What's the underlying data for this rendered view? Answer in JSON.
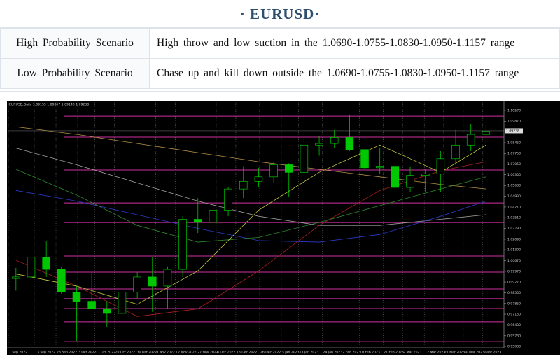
{
  "header": {
    "title": "· EURUSD·"
  },
  "table": {
    "rows": [
      [
        "High Probability Scenario",
        "High throw and low suction in the 1.0690-1.0755-1.0830-1.0950-1.1157 range"
      ],
      [
        "Low Probability Scenario",
        "Chase up and kill down outside the 1.0690-1.0755-1.0830-1.0950-1.1157 range"
      ]
    ]
  },
  "chart_data": {
    "type": "candlestick",
    "title": "EURUSD,Daily 1.09155 1.09367 1.09140 1.09238",
    "current_price": {
      "value": 1.09238,
      "label": "1.09238"
    },
    "xlim": [
      0,
      32.5
    ],
    "ylim": [
      0.9503,
      1.1108
    ],
    "open": [
      0.995,
      0.996,
      1.009,
      1.001,
      0.986,
      0.98,
      0.975,
      0.972,
      0.986,
      0.996,
      0.99,
      1.001,
      1.034,
      1.032,
      1.04,
      1.054,
      1.059,
      1.062,
      1.07,
      1.065,
      1.083,
      1.084,
      1.088,
      1.08,
      1.068,
      1.069,
      1.055,
      1.063,
      1.064,
      1.074,
      1.083,
      1.09
    ],
    "high": [
      1.002,
      1.014,
      1.02,
      1.003,
      0.99,
      0.999,
      0.98,
      0.988,
      0.999,
      1.009,
      1.003,
      1.036,
      1.048,
      1.044,
      1.055,
      1.069,
      1.068,
      1.072,
      1.071,
      1.083,
      1.089,
      1.093,
      1.103,
      1.08,
      1.081,
      1.072,
      1.069,
      1.067,
      1.079,
      1.093,
      1.097,
      1.096
    ],
    "low": [
      0.987,
      0.993,
      0.996,
      0.985,
      0.954,
      0.975,
      0.963,
      0.966,
      0.982,
      0.973,
      0.975,
      0.996,
      1.025,
      1.022,
      1.036,
      1.048,
      1.055,
      1.058,
      1.049,
      1.055,
      1.076,
      1.081,
      1.079,
      1.067,
      1.064,
      1.053,
      1.052,
      1.052,
      1.052,
      1.07,
      1.079,
      1.083
    ],
    "close": [
      0.996,
      1.009,
      1.001,
      0.986,
      0.98,
      0.975,
      0.972,
      0.986,
      0.996,
      0.99,
      1.001,
      1.034,
      1.032,
      1.04,
      1.054,
      1.059,
      1.062,
      1.07,
      1.065,
      1.083,
      1.084,
      1.088,
      1.08,
      1.068,
      1.069,
      1.055,
      1.063,
      1.064,
      1.074,
      1.083,
      1.09,
      1.092
    ],
    "candle_x": [
      0.5,
      1.5,
      2.5,
      3.5,
      4.5,
      5.5,
      6.5,
      7.5,
      8.5,
      9.5,
      10.5,
      11.5,
      12.5,
      13.5,
      14.5,
      15.5,
      16.5,
      17.5,
      18.5,
      19.5,
      20.5,
      21.5,
      22.5,
      23.5,
      24.5,
      25.5,
      26.5,
      27.5,
      28.5,
      29.5,
      30.5,
      31.5
    ],
    "up_color": "#00c800",
    "down_color": "#00c800",
    "levels": [
      1.102,
      1.0882,
      1.0665,
      1.0448,
      1.0319,
      1.0098,
      0.9992,
      0.9881,
      0.9817,
      0.9752,
      0.9665,
      0.9536
    ],
    "level_color": "#d0309f",
    "ma_x": [
      0.5,
      4.5,
      8.5,
      12.5,
      16.5,
      20.5,
      24.5,
      28.5,
      31.5
    ],
    "series": [
      {
        "color": "#b8924a",
        "values": [
          1.095,
          1.09,
          1.084,
          1.078,
          1.072,
          1.067,
          1.062,
          1.057,
          1.054
        ]
      },
      {
        "color": "#a0a0a0",
        "values": [
          1.081,
          1.07,
          1.058,
          1.046,
          1.036,
          1.03,
          1.03,
          1.034,
          1.037
        ]
      },
      {
        "color": "#2a3cc8",
        "values": [
          1.053,
          1.046,
          1.037,
          1.028,
          1.02,
          1.019,
          1.024,
          1.036,
          1.046
        ]
      },
      {
        "color": "#2e8a2e",
        "values": [
          1.067,
          1.05,
          1.03,
          1.019,
          1.022,
          1.032,
          1.043,
          1.054,
          1.062
        ]
      },
      {
        "color": "#b02020",
        "values": [
          1.007,
          0.99,
          0.97,
          0.975,
          1.0,
          1.03,
          1.053,
          1.066,
          1.072
        ]
      },
      {
        "color": "#c8c840",
        "values": [
          0.998,
          0.99,
          0.978,
          1.0,
          1.04,
          1.065,
          1.083,
          1.065,
          1.083
        ]
      }
    ],
    "yticks": [
      {
        "value": 1.1057,
        "label": "1.10570"
      },
      {
        "value": 1.0987,
        "label": "1.09870"
      },
      {
        "value": 1.0845,
        "label": "1.08450"
      },
      {
        "value": 1.0775,
        "label": "1.07750"
      },
      {
        "value": 1.0705,
        "label": "1.07050"
      },
      {
        "value": 1.0635,
        "label": "1.06350"
      },
      {
        "value": 1.0563,
        "label": "1.05630"
      },
      {
        "value": 1.0493,
        "label": "1.04930"
      },
      {
        "value": 1.0421,
        "label": "1.04210"
      },
      {
        "value": 1.0351,
        "label": "1.03510"
      },
      {
        "value": 1.0279,
        "label": "1.02790"
      },
      {
        "value": 1.0209,
        "label": "1.02090"
      },
      {
        "value": 1.0139,
        "label": "1.01390"
      },
      {
        "value": 1.0067,
        "label": "1.00670"
      },
      {
        "value": 0.9997,
        "label": "0.99970"
      },
      {
        "value": 0.9927,
        "label": "0.99270"
      },
      {
        "value": 0.9855,
        "label": "0.98550"
      },
      {
        "value": 0.9785,
        "label": "0.97850"
      },
      {
        "value": 0.9715,
        "label": "0.97150"
      },
      {
        "value": 0.9643,
        "label": "0.96430"
      },
      {
        "value": 0.9573,
        "label": "0.95730"
      },
      {
        "value": 0.9503,
        "label": "0.95030"
      }
    ],
    "xticks": [
      {
        "value": 0,
        "label": "1 Sep 2022"
      },
      {
        "value": 1.71,
        "label": "13 Sep 2022"
      },
      {
        "value": 3.14,
        "label": "23 Sep 2022"
      },
      {
        "value": 4.57,
        "label": "3 Oct 2022"
      },
      {
        "value": 5.71,
        "label": "11 Oct 2022"
      },
      {
        "value": 7.0,
        "label": "20 Oct 2022"
      },
      {
        "value": 8.43,
        "label": "30 Oct 2022"
      },
      {
        "value": 9.71,
        "label": "8 Nov 2022"
      },
      {
        "value": 11.0,
        "label": "17 Nov 2022"
      },
      {
        "value": 12.43,
        "label": "27 Nov 2022"
      },
      {
        "value": 13.71,
        "label": "6 Dec 2022"
      },
      {
        "value": 15.0,
        "label": "15 Dec 2022"
      },
      {
        "value": 16.57,
        "label": "26 Dec 2022"
      },
      {
        "value": 18.0,
        "label": "5 Jan 2023"
      },
      {
        "value": 19.14,
        "label": "13 Jan 2023"
      },
      {
        "value": 20.71,
        "label": "24 Jan 2023"
      },
      {
        "value": 22.0,
        "label": "2 Feb 2023"
      },
      {
        "value": 23.14,
        "label": "10 Feb 2023"
      },
      {
        "value": 24.71,
        "label": "21 Feb 2023"
      },
      {
        "value": 26.0,
        "label": "2 Mar 2023"
      },
      {
        "value": 27.43,
        "label": "12 Mar 2023"
      },
      {
        "value": 28.71,
        "label": "21 Mar 2023"
      },
      {
        "value": 30.0,
        "label": "30 Mar 2023"
      },
      {
        "value": 31.29,
        "label": "9 Apr 2023"
      }
    ]
  }
}
